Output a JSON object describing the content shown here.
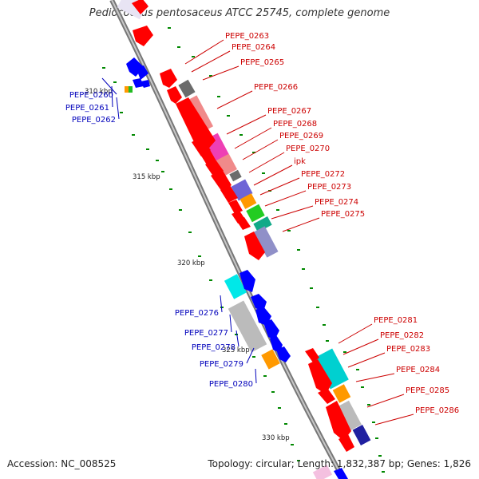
{
  "header": {
    "title": "Pediococcus pentosaceus ATCC 25745, complete genome"
  },
  "footer": {
    "accession": "Accession: NC_008525",
    "summary": "Topology: circular; Length: 1,832,387 bp; Genes: 1,826"
  },
  "colors": {
    "forward_label": "#cc0000",
    "reverse_label": "#0000bb",
    "forward_gene": "#ff0000",
    "reverse_gene": "#0000ff",
    "backbone": "#888888",
    "gc_dots": "#008800"
  },
  "ticks": [
    "310 kbp",
    "315 kbp",
    "320 kbp",
    "325 kbp",
    "330 kbp"
  ],
  "genes": {
    "reverse": [
      "PEPE_0260",
      "PEPE_0261",
      "PEPE_0262",
      "PEPE_0276",
      "PEPE_0277",
      "PEPE_0278",
      "PEPE_0279",
      "PEPE_0280"
    ],
    "forward": [
      "PEPE_0263",
      "PEPE_0264",
      "PEPE_0265",
      "PEPE_0266",
      "PEPE_0267",
      "PEPE_0268",
      "PEPE_0269",
      "PEPE_0270",
      "ipk",
      "PEPE_0272",
      "PEPE_0273",
      "PEPE_0274",
      "PEPE_0275",
      "PEPE_0281",
      "PEPE_0282",
      "PEPE_0283",
      "PEPE_0284",
      "PEPE_0285",
      "PEPE_0286"
    ]
  }
}
